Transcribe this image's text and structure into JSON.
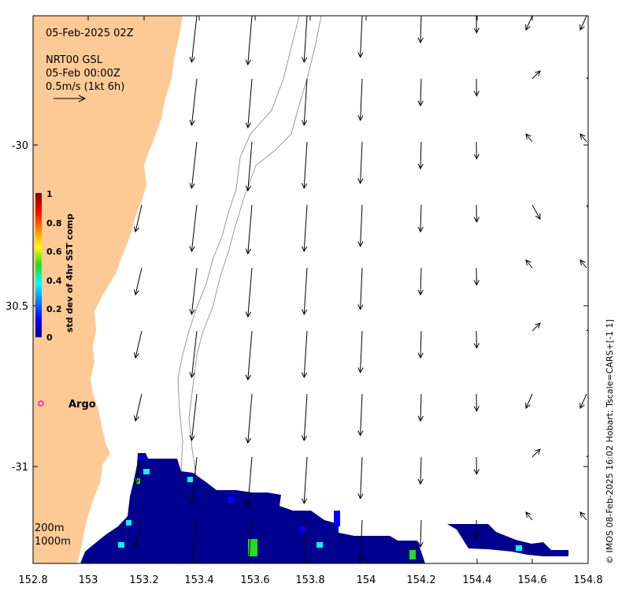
{
  "map": {
    "title": "05-Feb-2025 02Z",
    "product": "NRT00 GSL",
    "product_time": "05-Feb 00:00Z",
    "scale_label": "0.5m/s (1kt 6h)",
    "x_ticks": [
      "152.8",
      "153",
      "153.2",
      "153.4",
      "153.6",
      "153.8",
      "154",
      "154.2",
      "154.4",
      "154.6",
      "154.8"
    ],
    "y_ticks": [
      "-30",
      "30.5",
      "-31"
    ],
    "isobaths": [
      "200m",
      "1000m"
    ],
    "colorbar": {
      "title": "std dev of 4hr SST comp",
      "ticks": [
        "1",
        "0.8",
        "0.6",
        "0.4",
        "0.2",
        "0"
      ]
    },
    "argo_label": "Argo",
    "credit": "© IMOS 08-Feb-2025 16:02 Hobart; Tscale=CARS+[-1 1]",
    "colors": {
      "land": "#fdca96",
      "argo_marker": "#ff00ff",
      "sst_low": "#00008f",
      "sst_high": "#800000"
    }
  }
}
